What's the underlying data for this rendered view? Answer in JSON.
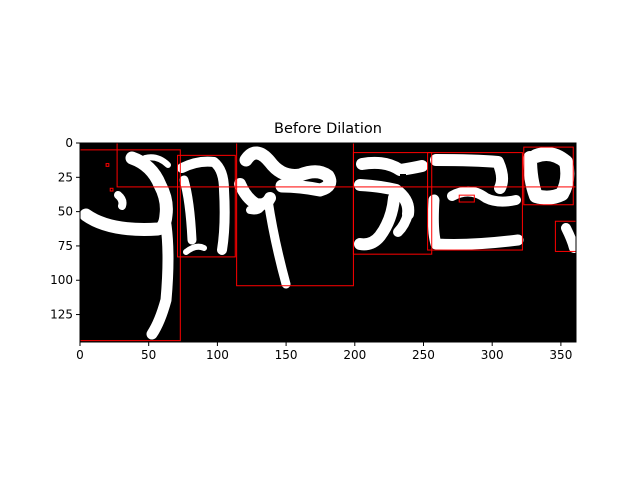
{
  "chart_data": {
    "type": "image",
    "title": "Before Dilation",
    "xlabel": "",
    "ylabel": "",
    "xlim": [
      0,
      361
    ],
    "ylim": [
      0,
      145
    ],
    "y_inverted": true,
    "x_ticks": [
      0,
      50,
      100,
      150,
      200,
      250,
      300,
      350
    ],
    "y_ticks": [
      0,
      25,
      50,
      75,
      100,
      125
    ],
    "box_color": "#ff0000",
    "image_description": "binary thresholded handwriting, white strokes on black",
    "bounding_boxes": [
      {
        "x0": 0,
        "y0": 5,
        "x1": 73,
        "y1": 144
      },
      {
        "x0": 27,
        "y0": 0,
        "x1": 361,
        "y1": 32
      },
      {
        "x0": 71,
        "y0": 9,
        "x1": 113,
        "y1": 83
      },
      {
        "x0": 114,
        "y0": 0,
        "x1": 199,
        "y1": 104
      },
      {
        "x0": 199,
        "y0": 7,
        "x1": 256,
        "y1": 81
      },
      {
        "x0": 253,
        "y0": 7,
        "x1": 322,
        "y1": 78
      },
      {
        "x0": 323,
        "y0": 3,
        "x1": 359,
        "y1": 45
      },
      {
        "x0": 346,
        "y0": 57,
        "x1": 361,
        "y1": 79
      },
      {
        "x0": 276,
        "y0": 38,
        "x1": 287,
        "y1": 43
      },
      {
        "x0": 19,
        "y0": 15,
        "x1": 21,
        "y1": 17
      },
      {
        "x0": 22,
        "y0": 33,
        "x1": 24,
        "y1": 35
      }
    ]
  }
}
